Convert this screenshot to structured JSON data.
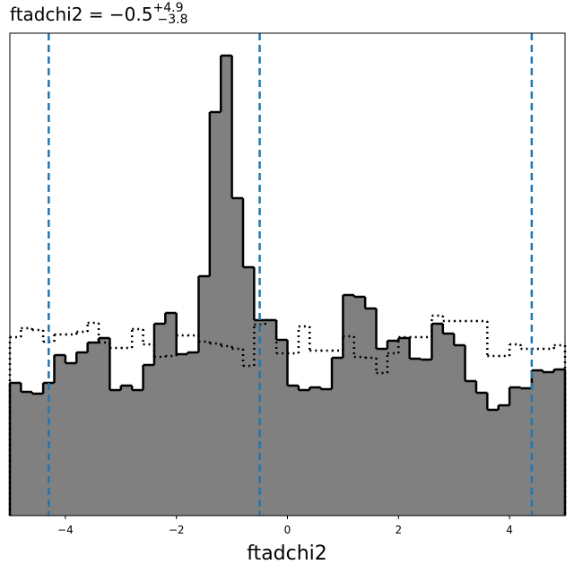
{
  "chart_data": {
    "type": "histogram",
    "title": {
      "main": "ftadchi2 = −0.5",
      "upper": "+4.9",
      "lower": "−3.8"
    },
    "x_label": "ftadchi2",
    "bins": [
      -5,
      -4.8,
      -4.6,
      -4.4,
      -4.2,
      -4,
      -3.8,
      -3.6,
      -3.4,
      -3.2,
      -3,
      -2.8,
      -2.6,
      -2.4,
      -2.2,
      -2,
      -1.8,
      -1.6,
      -1.4,
      -1.2,
      -1,
      -0.8,
      -0.6,
      -0.4,
      -0.2,
      0,
      0.2,
      0.4,
      0.6,
      0.8,
      1,
      1.2,
      1.4,
      1.6,
      1.8,
      2,
      2.2,
      2.4,
      2.6,
      2.8,
      3,
      3.2,
      3.4,
      3.6,
      3.8,
      4,
      4.2,
      4.4,
      4.6,
      4.8,
      5
    ],
    "series": [
      {
        "color": "#000000",
        "fill": "#808080",
        "style": "solid",
        "values": [
          148,
          138,
          136,
          148,
          179,
          170,
          182,
          193,
          198,
          140,
          145,
          140,
          168,
          214,
          226,
          180,
          182,
          267,
          450,
          513,
          354,
          277,
          218,
          218,
          196,
          145,
          140,
          143,
          141,
          176,
          246,
          244,
          231,
          186,
          195,
          198,
          175,
          174,
          214,
          203,
          190,
          150,
          137,
          118,
          123,
          143,
          142,
          162,
          160,
          163
        ]
      },
      {
        "color": "#000000",
        "style": "dotted",
        "values": [
          199,
          209,
          207,
          194,
          202,
          202,
          205,
          215,
          193,
          187,
          187,
          208,
          191,
          177,
          178,
          201,
          201,
          194,
          192,
          189,
          186,
          167,
          213,
          218,
          181,
          181,
          211,
          184,
          184,
          184,
          200,
          177,
          176,
          159,
          181,
          199,
          199,
          199,
          223,
          217,
          217,
          217,
          217,
          178,
          178,
          191,
          186,
          186,
          186,
          190
        ]
      }
    ],
    "quantiles": [
      -4.3,
      -0.5,
      4.4
    ],
    "quantile_color": "#1f77b4",
    "xlim": [
      -5,
      5
    ],
    "ylim": [
      0,
      538
    ],
    "xticks": [
      {
        "value": -4,
        "label": "−4"
      },
      {
        "value": -2,
        "label": "−2"
      },
      0,
      2,
      4
    ]
  }
}
